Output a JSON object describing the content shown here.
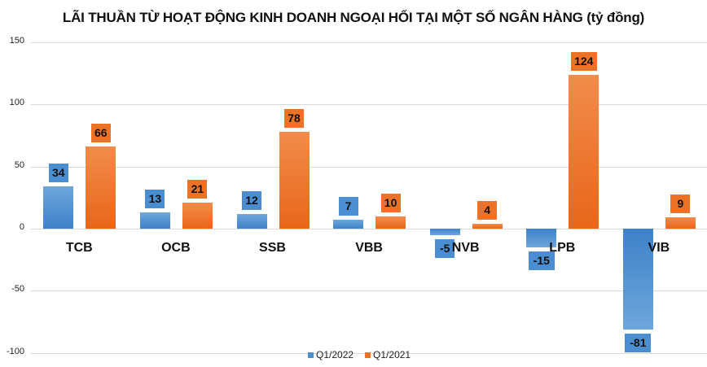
{
  "chart_data": {
    "type": "bar",
    "title": "LÃI THUẦN TỪ HOẠT ĐỘNG KINH DOANH NGOẠI HỐI TẠI MỘT SỐ NGÂN HÀNG (tỷ đồng)",
    "xlabel": "",
    "ylabel": "",
    "ylim": [
      -100,
      150
    ],
    "yticks": [
      150,
      100,
      50,
      0,
      -50,
      -100
    ],
    "grid": true,
    "legend_position": "bottom",
    "categories": [
      "TCB",
      "OCB",
      "SSB",
      "VBB",
      "NVB",
      "LPB",
      "VIB"
    ],
    "series": [
      {
        "name": "Q1/2022",
        "color": "#4a8dd0",
        "values": [
          34,
          13,
          12,
          7,
          -5,
          -15,
          -81
        ]
      },
      {
        "name": "Q1/2021",
        "color": "#ec7228",
        "values": [
          66,
          21,
          78,
          10,
          4,
          124,
          9
        ]
      }
    ]
  }
}
